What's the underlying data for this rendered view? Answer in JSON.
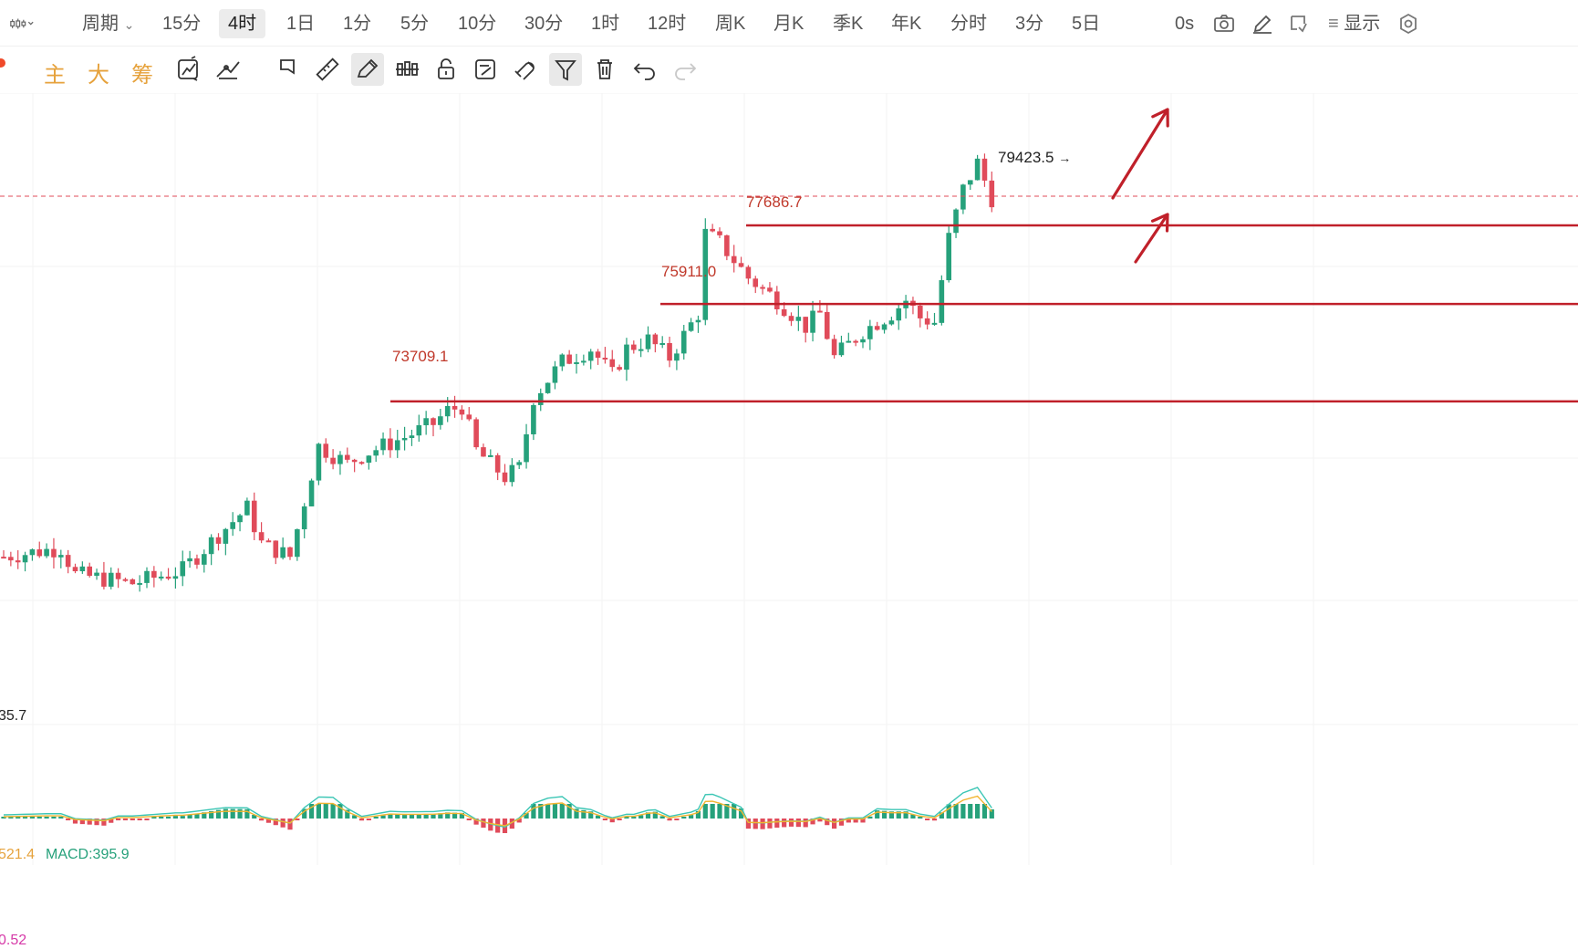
{
  "topbar": {
    "period_label": "周期",
    "timeframes": [
      "15分",
      "4时",
      "1日",
      "1分",
      "5分",
      "10分",
      "30分",
      "1时",
      "12时",
      "周K",
      "月K",
      "季K",
      "年K",
      "分时",
      "3分",
      "5日"
    ],
    "active_timeframe": "4时",
    "countdown": "0s",
    "display_label": "显示"
  },
  "toolbar": {
    "indicator_labels": [
      "主",
      "大",
      "筹"
    ]
  },
  "chart": {
    "levels": [
      {
        "price": 77686.7,
        "label": "77686.7"
      },
      {
        "price": 75911.0,
        "label": "75911.0"
      },
      {
        "price": 73709.1,
        "label": "73709.1"
      }
    ],
    "high_label": "79423.5",
    "low_label_partial": "35.7",
    "colors": {
      "up": "#26a17b",
      "down": "#e04b5a",
      "level": "#c0202a",
      "arrow": "#c0202a",
      "dif": "#3cc6b5",
      "dea": "#f2b530"
    },
    "macd": {
      "left_value": "521.4",
      "macd_label": "MACD:395.9",
      "bottom_value": "0.52"
    }
  },
  "chart_data": {
    "type": "candlestick",
    "timeframe": "4时",
    "annotated_levels": [
      77686.7,
      75911.0,
      73709.1
    ],
    "annotated_high": 79423.5,
    "indicator": {
      "name": "MACD",
      "value": 395.9
    }
  }
}
